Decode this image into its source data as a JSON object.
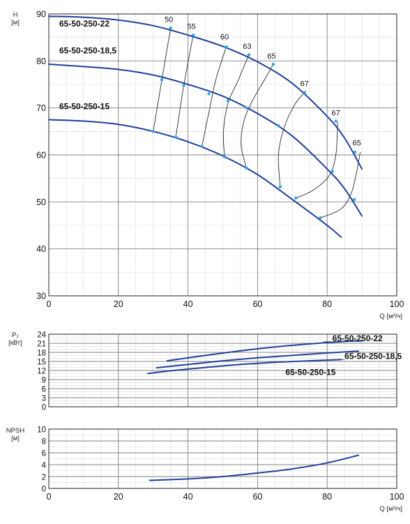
{
  "chart_data": [
    {
      "id": "head",
      "type": "line",
      "ylabel_lines": [
        "H",
        "[м]"
      ],
      "xlabel": "Q [м³/ч]",
      "xlim": [
        0,
        100
      ],
      "ylim": [
        30,
        90
      ],
      "xticks": [
        0,
        20,
        40,
        60,
        80,
        100
      ],
      "yticks": [
        30,
        40,
        50,
        60,
        70,
        80,
        90
      ],
      "series": [
        {
          "name": "65-50-250-22",
          "label_anchor": [
            3,
            87.3
          ],
          "x": [
            0,
            10,
            20,
            30,
            40,
            50,
            60,
            70,
            80,
            85,
            90
          ],
          "y": [
            89.5,
            89.3,
            88.7,
            87.5,
            85.5,
            83.1,
            79.8,
            75.2,
            68.2,
            63.6,
            57.0
          ]
        },
        {
          "name": "65-50-250-18,5",
          "label_anchor": [
            3,
            81.6
          ],
          "x": [
            0,
            10,
            20,
            30,
            40,
            50,
            60,
            70,
            80,
            85,
            90
          ],
          "y": [
            79.3,
            78.8,
            78.2,
            77.0,
            75.0,
            72.5,
            68.8,
            64.0,
            57.0,
            52.8,
            47.0
          ]
        },
        {
          "name": "65-50-250-15",
          "label_anchor": [
            3,
            69.7
          ],
          "x": [
            0,
            10,
            20,
            30,
            40,
            50,
            60,
            70,
            80,
            84
          ],
          "y": [
            67.5,
            67.2,
            66.5,
            65.0,
            62.8,
            59.8,
            55.8,
            50.5,
            45.0,
            42.5
          ]
        }
      ],
      "efficiency_isolines": [
        {
          "label": "50",
          "x": [
            30.0,
            32.5,
            35.0
          ],
          "y": [
            65.0,
            76.0,
            87.0
          ],
          "label_pos": [
            34.5,
            88.3
          ]
        },
        {
          "label": "55",
          "x": [
            36.5,
            38.8,
            41.5
          ],
          "y": [
            63.8,
            74.8,
            85.5
          ],
          "label_pos": [
            41.0,
            86.8
          ]
        },
        {
          "label": "60",
          "x": [
            44.0,
            46.0,
            48.0,
            51.0
          ],
          "y": [
            61.8,
            69.0,
            76.0,
            83.0
          ],
          "label_pos": [
            50.5,
            84.6
          ]
        },
        {
          "label": "63",
          "x": [
            50.5,
            50.2,
            51.5,
            54.5,
            57.5
          ],
          "y": [
            59.6,
            65.0,
            71.0,
            76.0,
            81.3
          ],
          "label_pos": [
            57.0,
            82.6
          ]
        },
        {
          "label": "65",
          "x": [
            56.8,
            55.3,
            56.0,
            58.5,
            62.0,
            64.5
          ],
          "y": [
            57.2,
            62.0,
            67.0,
            71.5,
            76.0,
            79.3
          ],
          "label_pos": [
            64.0,
            80.5
          ]
        },
        {
          "label": "67",
          "x": [
            66.5,
            66.0,
            67.5,
            70.5,
            73.5
          ],
          "y": [
            53.2,
            60.0,
            65.5,
            70.5,
            73.3
          ],
          "label_pos": [
            73.5,
            74.6
          ]
        },
        {
          "label": "67",
          "x": [
            71.0,
            76.0,
            80.5,
            82.5,
            83.0
          ],
          "y": [
            50.8,
            52.5,
            55.5,
            60.0,
            67.0
          ],
          "label_pos": [
            82.5,
            68.4
          ]
        },
        {
          "label": "65",
          "x": [
            78.0,
            84.0,
            87.0,
            88.5,
            89.5
          ],
          "y": [
            46.6,
            48.5,
            52.0,
            56.5,
            60.6
          ],
          "label_pos": [
            88.5,
            62.0
          ]
        }
      ],
      "markers": [
        {
          "x": 30.0,
          "y": 65.0
        },
        {
          "x": 36.5,
          "y": 63.8
        },
        {
          "x": 44.0,
          "y": 61.8
        },
        {
          "x": 50.5,
          "y": 59.6
        },
        {
          "x": 56.8,
          "y": 57.2
        },
        {
          "x": 66.5,
          "y": 53.2
        },
        {
          "x": 71.0,
          "y": 50.8
        },
        {
          "x": 78.0,
          "y": 46.6
        },
        {
          "x": 32.5,
          "y": 76.0
        },
        {
          "x": 38.8,
          "y": 74.8
        },
        {
          "x": 46.0,
          "y": 73.0
        },
        {
          "x": 51.5,
          "y": 71.5
        },
        {
          "x": 56.8,
          "y": 70.0
        },
        {
          "x": 66.0,
          "y": 66.2
        },
        {
          "x": 81.5,
          "y": 56.5
        },
        {
          "x": 87.8,
          "y": 50.5
        },
        {
          "x": 35.0,
          "y": 87.0
        },
        {
          "x": 41.5,
          "y": 85.5
        },
        {
          "x": 51.0,
          "y": 83.0
        },
        {
          "x": 57.5,
          "y": 81.3
        },
        {
          "x": 64.5,
          "y": 79.3
        },
        {
          "x": 73.5,
          "y": 73.3
        },
        {
          "x": 82.5,
          "y": 67.2
        },
        {
          "x": 88.0,
          "y": 60.6
        }
      ]
    },
    {
      "id": "power",
      "type": "line",
      "ylabel_lines": [
        "P₂",
        "[кВт]"
      ],
      "xlim": [
        0,
        100
      ],
      "ylim": [
        0,
        24
      ],
      "yticks": [
        0,
        3,
        6,
        9,
        12,
        15,
        18,
        21,
        24
      ],
      "series": [
        {
          "name": "65-50-250-22",
          "label_anchor": [
            81.5,
            21.7
          ],
          "leader": [
            [
              79,
              21.5
            ],
            [
              81,
              21.5
            ]
          ],
          "x": [
            34,
            45,
            55,
            65,
            75,
            85,
            90
          ],
          "y": [
            15.2,
            17.0,
            18.5,
            19.8,
            20.8,
            21.6,
            21.8
          ]
        },
        {
          "name": "65-50-250-18,5",
          "label_anchor": [
            85,
            15.8
          ],
          "leader": [
            [
              84,
              15.6
            ],
            [
              85,
              15.6
            ]
          ],
          "x": [
            31,
            40,
            50,
            60,
            70,
            80,
            89
          ],
          "y": [
            12.9,
            14.0,
            15.2,
            16.2,
            17.0,
            17.8,
            18.4
          ]
        },
        {
          "name": "65-50-250-15",
          "label_anchor": [
            68,
            10.5
          ],
          "x": [
            28.5,
            35,
            45,
            55,
            65,
            75,
            84
          ],
          "y": [
            11.0,
            11.9,
            13.0,
            14.0,
            14.7,
            15.2,
            15.6
          ]
        }
      ]
    },
    {
      "id": "npsh",
      "type": "line",
      "ylabel_lines": [
        "NPSH",
        "[м]"
      ],
      "xlabel": "Q [м³/ч]",
      "xlim": [
        0,
        100
      ],
      "ylim": [
        0,
        10
      ],
      "xticks": [
        0,
        20,
        40,
        60,
        80,
        100
      ],
      "yticks": [
        0,
        2,
        4,
        6,
        8,
        10
      ],
      "series": [
        {
          "name": "",
          "x": [
            29,
            40,
            50,
            60,
            70,
            80,
            89
          ],
          "y": [
            1.35,
            1.6,
            2.0,
            2.6,
            3.3,
            4.3,
            5.6
          ]
        }
      ]
    }
  ]
}
